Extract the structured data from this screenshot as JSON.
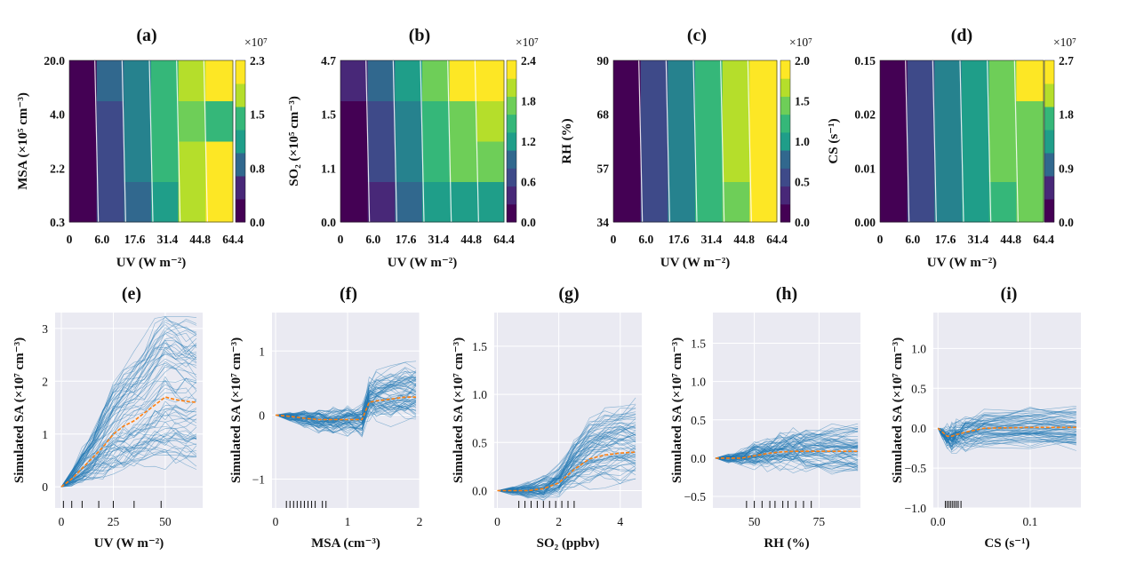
{
  "figure": {
    "top_row": [
      {
        "label": "(a)",
        "ylabel": "MSA (×10⁵ cm⁻³)",
        "xlabel": "UV (W m⁻²)",
        "xticks": [
          "0",
          "6.0",
          "17.6",
          "31.4",
          "44.8",
          "64.4"
        ],
        "yticks": [
          "0.3",
          "2.2",
          "4.0",
          "20.0"
        ],
        "cbar_ticks": [
          "0.0",
          "0.8",
          "1.5",
          "2.3"
        ],
        "cbar_multiplier": "×10⁷"
      },
      {
        "label": "(b)",
        "ylabel": "SO₂ (×10⁵ cm⁻³)",
        "xlabel": "UV (W m⁻²)",
        "xticks": [
          "0",
          "6.0",
          "17.6",
          "31.4",
          "44.8",
          "64.4"
        ],
        "yticks": [
          "0.0",
          "1.1",
          "1.5",
          "4.7"
        ],
        "cbar_ticks": [
          "0.0",
          "0.6",
          "1.2",
          "1.8",
          "2.4"
        ],
        "cbar_multiplier": "×10⁷"
      },
      {
        "label": "(c)",
        "ylabel": "RH (%)",
        "xlabel": "UV (W m⁻²)",
        "xticks": [
          "0",
          "6.0",
          "17.6",
          "31.4",
          "44.8",
          "64.4"
        ],
        "yticks": [
          "34",
          "57",
          "68",
          "90"
        ],
        "cbar_ticks": [
          "0.0",
          "0.5",
          "1.0",
          "1.5",
          "2.0"
        ],
        "cbar_multiplier": "×10⁷"
      },
      {
        "label": "(d)",
        "ylabel": "CS (s⁻¹)",
        "xlabel": "UV (W m⁻²)",
        "xticks": [
          "0",
          "6.0",
          "17.6",
          "31.4",
          "44.8",
          "64.4"
        ],
        "yticks": [
          "0.00",
          "0.01",
          "0.02",
          "0.15"
        ],
        "cbar_ticks": [
          "0.0",
          "0.9",
          "1.8",
          "2.7"
        ],
        "cbar_multiplier": "×10⁷"
      }
    ],
    "bottom_row": [
      {
        "label": "(e)",
        "xlabel": "UV (W m⁻²)",
        "ylabel": "Simulated SA (×10⁷ cm⁻³)",
        "xticks": [
          "0",
          "25",
          "50"
        ],
        "yticks": [
          "0",
          "1",
          "2",
          "3"
        ]
      },
      {
        "label": "(f)",
        "xlabel": "MSA (cm⁻³)",
        "ylabel": "Simulated SA (×10⁷ cm⁻³)",
        "xticks": [
          "0",
          "1",
          "2"
        ],
        "yticks": [
          "−1",
          "0",
          "1"
        ]
      },
      {
        "label": "(g)",
        "xlabel": "SO₂ (ppbv)",
        "ylabel": "Simulated SA (×10⁷ cm⁻³)",
        "xticks": [
          "0",
          "2",
          "4"
        ],
        "yticks": [
          "0.0",
          "0.5",
          "1.0",
          "1.5"
        ]
      },
      {
        "label": "(h)",
        "xlabel": "RH (%)",
        "ylabel": "Simulated SA (×10⁷ cm⁻³)",
        "xticks": [
          "50",
          "75"
        ],
        "yticks": [
          "−0.5",
          "0.0",
          "0.5",
          "1.0",
          "1.5"
        ]
      },
      {
        "label": "(i)",
        "xlabel": "CS (s⁻¹)",
        "ylabel": "Simulated SA (×10⁷ cm⁻³)",
        "xticks": [
          "0.0",
          "0.1"
        ],
        "yticks": [
          "−1.0",
          "−0.5",
          "0.0",
          "0.5",
          "1.0"
        ]
      }
    ]
  },
  "chart_data": [
    {
      "type": "heatmap",
      "title": "(a)",
      "xlabel": "UV (W m⁻²)",
      "ylabel": "MSA (×10⁵ cm⁻³)",
      "x": [
        0,
        6.0,
        17.6,
        31.4,
        44.8,
        64.4
      ],
      "y": [
        0.3,
        2.2,
        4.0,
        20.0
      ],
      "colorbar": {
        "min": 0.0,
        "max": 2.3,
        "ticks": [
          0.0,
          0.8,
          1.5,
          2.3
        ],
        "multiplier": "×10⁷"
      },
      "z": [
        [
          0.05,
          0.6,
          0.9,
          1.3,
          2.05,
          2.1
        ],
        [
          0.05,
          0.6,
          0.95,
          1.4,
          2.05,
          2.1
        ],
        [
          0.05,
          0.6,
          1.0,
          1.5,
          1.7,
          1.4
        ],
        [
          0.1,
          0.7,
          1.1,
          1.6,
          2.0,
          2.3
        ]
      ]
    },
    {
      "type": "heatmap",
      "title": "(b)",
      "xlabel": "UV (W m⁻²)",
      "ylabel": "SO₂ (×10⁵ cm⁻³)",
      "x": [
        0,
        6.0,
        17.6,
        31.4,
        44.8,
        64.4
      ],
      "y": [
        0.0,
        1.1,
        1.5,
        4.7
      ],
      "colorbar": {
        "min": 0.0,
        "max": 2.4,
        "ticks": [
          0.0,
          0.6,
          1.2,
          1.8,
          2.4
        ],
        "multiplier": "×10⁷"
      },
      "z": [
        [
          0.1,
          0.45,
          0.85,
          1.2,
          1.3,
          1.4
        ],
        [
          0.15,
          0.6,
          1.0,
          1.5,
          1.7,
          1.8
        ],
        [
          0.2,
          0.7,
          1.1,
          1.6,
          1.9,
          2.0
        ],
        [
          0.3,
          0.8,
          1.3,
          1.9,
          2.2,
          2.3
        ]
      ]
    },
    {
      "type": "heatmap",
      "title": "(c)",
      "xlabel": "UV (W m⁻²)",
      "ylabel": "RH (%)",
      "x": [
        0,
        6.0,
        17.6,
        31.4,
        44.8,
        64.4
      ],
      "y": [
        34,
        57,
        68,
        90
      ],
      "colorbar": {
        "min": 0.0,
        "max": 2.0,
        "ticks": [
          0.0,
          0.5,
          1.0,
          1.5,
          2.0
        ],
        "multiplier": "×10⁷"
      },
      "z": [
        [
          0.05,
          0.45,
          0.9,
          1.25,
          1.55,
          1.95
        ],
        [
          0.05,
          0.45,
          0.9,
          1.3,
          1.6,
          1.8
        ],
        [
          0.05,
          0.45,
          0.9,
          1.3,
          1.6,
          1.85
        ],
        [
          0.05,
          0.45,
          0.9,
          1.3,
          1.6,
          1.9
        ]
      ]
    },
    {
      "type": "heatmap",
      "title": "(d)",
      "xlabel": "UV (W m⁻²)",
      "ylabel": "CS (s⁻¹)",
      "x": [
        0,
        6.0,
        17.6,
        31.4,
        44.8,
        64.4
      ],
      "y": [
        0.0,
        0.01,
        0.02,
        0.15
      ],
      "colorbar": {
        "min": 0.0,
        "max": 2.7,
        "ticks": [
          0.0,
          0.9,
          1.8,
          2.7
        ],
        "multiplier": "×10⁷"
      },
      "z": [
        [
          0.1,
          0.7,
          1.2,
          1.55,
          1.8,
          2.0
        ],
        [
          0.1,
          0.7,
          1.2,
          1.6,
          1.95,
          2.0
        ],
        [
          0.1,
          0.7,
          1.2,
          1.6,
          1.95,
          2.0
        ],
        [
          0.1,
          0.7,
          1.2,
          1.6,
          2.0,
          2.6
        ]
      ]
    },
    {
      "type": "line",
      "title": "(e)",
      "xlabel": "UV (W m⁻²)",
      "ylabel": "Simulated SA (×10⁷ cm⁻³)",
      "xlim": [
        -3,
        68
      ],
      "ylim": [
        -0.4,
        3.3
      ],
      "x": [
        0,
        5,
        10,
        15,
        20,
        25,
        30,
        35,
        40,
        45,
        50,
        55,
        60,
        65
      ],
      "series": [
        {
          "values": [
            0,
            0.15,
            0.35,
            0.55,
            0.75,
            1.0,
            1.15,
            1.25,
            1.4,
            1.55,
            1.7,
            1.65,
            1.62,
            1.6
          ]
        }
      ],
      "rug": [
        1,
        5,
        10,
        18,
        25,
        35,
        48
      ]
    },
    {
      "type": "line",
      "title": "(f)",
      "xlabel": "MSA (cm⁻³)",
      "ylabel": "Simulated SA (×10⁷ cm⁻³)",
      "xlim": [
        -0.05,
        2.0
      ],
      "ylim": [
        -1.45,
        1.6
      ],
      "x": [
        0,
        0.2,
        0.4,
        0.6,
        0.8,
        1.0,
        1.2,
        1.3,
        1.4,
        1.6,
        1.8,
        1.95
      ],
      "series": [
        {
          "values": [
            0,
            -0.02,
            -0.05,
            -0.07,
            -0.07,
            -0.07,
            -0.07,
            0.2,
            0.22,
            0.25,
            0.28,
            0.28
          ]
        }
      ],
      "rug": [
        0.15,
        0.2,
        0.25,
        0.3,
        0.35,
        0.4,
        0.45,
        0.5,
        0.55,
        0.65,
        0.7
      ]
    },
    {
      "type": "line",
      "title": "(g)",
      "xlabel": "SO₂ (ppbv)",
      "ylabel": "Simulated SA (×10⁷ cm⁻³)",
      "xlim": [
        -0.1,
        4.7
      ],
      "ylim": [
        -0.18,
        1.85
      ],
      "x": [
        0,
        0.5,
        1.0,
        1.5,
        2.0,
        2.5,
        3.0,
        3.5,
        4.0,
        4.5
      ],
      "series": [
        {
          "values": [
            0,
            0,
            0,
            0.02,
            0.08,
            0.22,
            0.33,
            0.37,
            0.39,
            0.4
          ]
        }
      ],
      "rug": [
        0.7,
        0.9,
        1.1,
        1.3,
        1.5,
        1.7,
        1.9,
        2.1,
        2.3,
        2.5
      ]
    },
    {
      "type": "line",
      "title": "(h)",
      "xlabel": "RH (%)",
      "ylabel": "Simulated SA (×10⁷ cm⁻³)",
      "xlim": [
        34,
        91
      ],
      "ylim": [
        -0.65,
        1.9
      ],
      "x": [
        35,
        40,
        45,
        50,
        55,
        60,
        65,
        70,
        80,
        90
      ],
      "series": [
        {
          "values": [
            0,
            0,
            0,
            0.03,
            0.06,
            0.08,
            0.09,
            0.09,
            0.09,
            0.09
          ]
        }
      ],
      "rug": [
        47,
        50,
        53,
        56,
        58,
        61,
        63,
        66,
        69,
        72
      ]
    },
    {
      "type": "line",
      "title": "(i)",
      "xlabel": "CS (s⁻¹)",
      "ylabel": "Simulated SA (×10⁷ cm⁻³)",
      "xlim": [
        -0.005,
        0.155
      ],
      "ylim": [
        -1.0,
        1.45
      ],
      "x": [
        0,
        0.005,
        0.01,
        0.015,
        0.02,
        0.03,
        0.05,
        0.1,
        0.15
      ],
      "series": [
        {
          "values": [
            0,
            -0.05,
            -0.1,
            -0.1,
            -0.08,
            -0.05,
            0,
            0.01,
            0.01
          ]
        }
      ],
      "rug": [
        0.008,
        0.01,
        0.012,
        0.014,
        0.016,
        0.018,
        0.02,
        0.022,
        0.025
      ]
    }
  ]
}
